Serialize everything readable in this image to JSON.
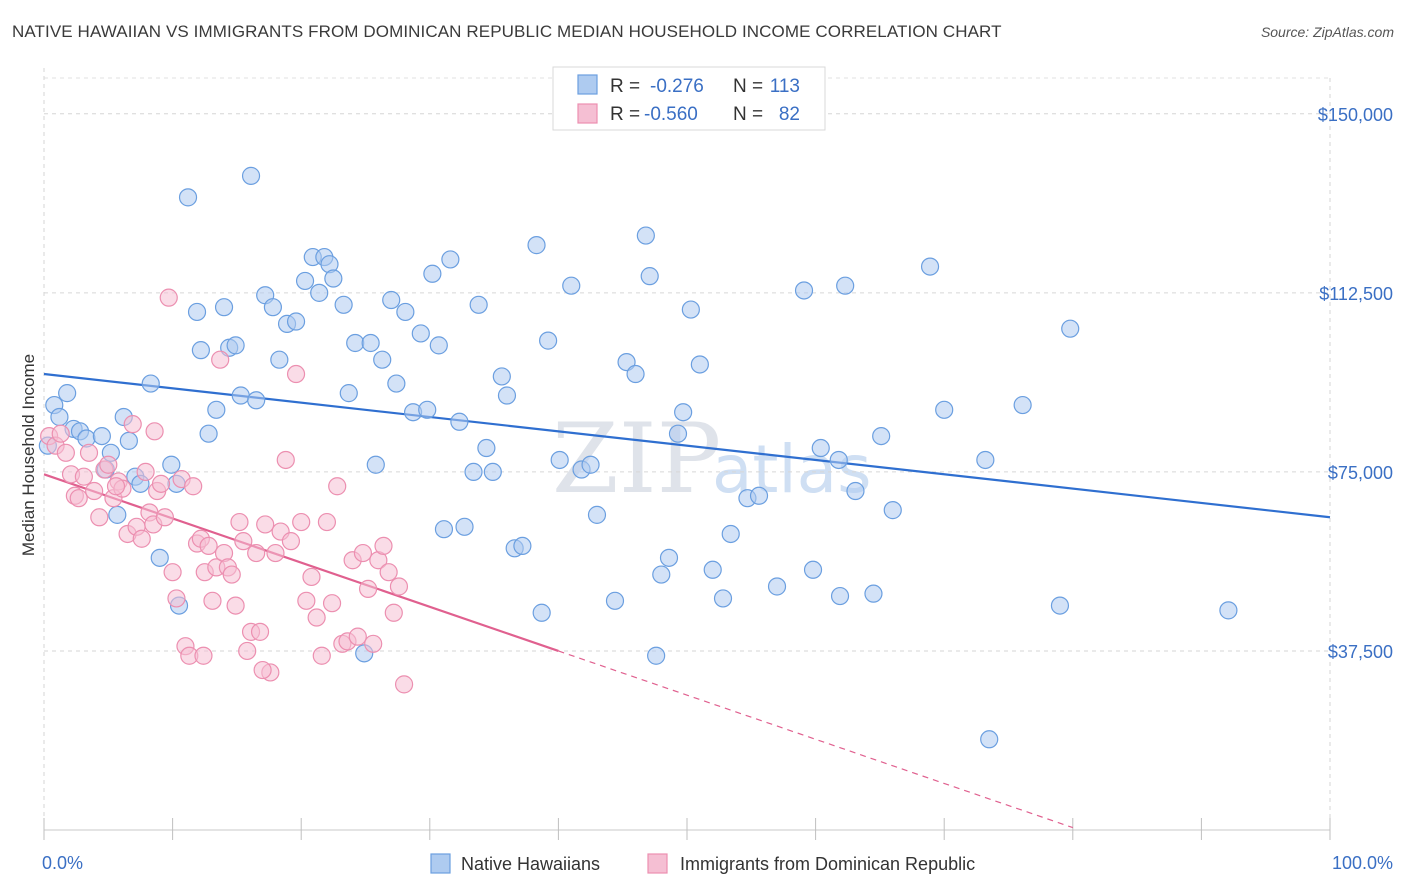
{
  "title": "NATIVE HAWAIIAN VS IMMIGRANTS FROM DOMINICAN REPUBLIC MEDIAN HOUSEHOLD INCOME CORRELATION CHART",
  "source": "Source: ZipAtlas.com",
  "watermark": {
    "part1": "ZIP",
    "part2": "atlas"
  },
  "chart_data": {
    "type": "scatter",
    "title": "NATIVE HAWAIIAN VS IMMIGRANTS FROM DOMINICAN REPUBLIC MEDIAN HOUSEHOLD INCOME CORRELATION CHART",
    "xlabel": "",
    "ylabel": "Median Household Income",
    "xlim": [
      0,
      100
    ],
    "ylim": [
      0,
      157500
    ],
    "x_tick_labels": [
      "0.0%",
      "100.0%"
    ],
    "y_ticks": [
      {
        "value": 37500,
        "label": "$37,500"
      },
      {
        "value": 75000,
        "label": "$75,000"
      },
      {
        "value": 112500,
        "label": "$112,500"
      },
      {
        "value": 150000,
        "label": "$150,000"
      }
    ],
    "grid": true,
    "legend": {
      "position": "top-center",
      "entries": [
        {
          "label_r": "R =",
          "r": "-0.276",
          "label_n": "N =",
          "n": "113"
        },
        {
          "label_r": "R =",
          "r": "-0.560",
          "label_n": "N =",
          "n": "82"
        }
      ]
    },
    "series": [
      {
        "name": "Native Hawaiians",
        "color": "#6b9fe0",
        "fill": "#aecbf0",
        "line_color": "#2f6fd0",
        "trend": {
          "x0": 0,
          "y0": 95500,
          "x1": 100,
          "y1": 65500,
          "dash_from": null
        },
        "points": [
          [
            0.3,
            80500
          ],
          [
            0.8,
            89000
          ],
          [
            1.2,
            86500
          ],
          [
            1.8,
            91500
          ],
          [
            2.3,
            84000
          ],
          [
            2.8,
            83500
          ],
          [
            3.3,
            82000
          ],
          [
            4.5,
            82500
          ],
          [
            4.8,
            75500
          ],
          [
            5.2,
            79000
          ],
          [
            5.7,
            66000
          ],
          [
            6.2,
            86500
          ],
          [
            6.6,
            81500
          ],
          [
            7.1,
            74000
          ],
          [
            7.5,
            72500
          ],
          [
            8.3,
            93500
          ],
          [
            9.0,
            57000
          ],
          [
            9.9,
            76500
          ],
          [
            10.3,
            72500
          ],
          [
            10.5,
            47000
          ],
          [
            11.2,
            132500
          ],
          [
            11.9,
            108500
          ],
          [
            12.2,
            100500
          ],
          [
            12.8,
            83000
          ],
          [
            13.4,
            88000
          ],
          [
            14.0,
            109500
          ],
          [
            14.4,
            101000
          ],
          [
            14.9,
            101500
          ],
          [
            15.3,
            91000
          ],
          [
            16.1,
            137000
          ],
          [
            16.5,
            90000
          ],
          [
            17.2,
            112000
          ],
          [
            17.8,
            109500
          ],
          [
            18.3,
            98500
          ],
          [
            18.9,
            106000
          ],
          [
            19.6,
            106500
          ],
          [
            20.3,
            115000
          ],
          [
            20.9,
            120000
          ],
          [
            21.4,
            112500
          ],
          [
            21.8,
            120000
          ],
          [
            22.2,
            118500
          ],
          [
            22.5,
            115500
          ],
          [
            23.3,
            110000
          ],
          [
            23.7,
            91500
          ],
          [
            24.2,
            102000
          ],
          [
            24.9,
            37000
          ],
          [
            25.4,
            102000
          ],
          [
            25.8,
            76500
          ],
          [
            26.3,
            98500
          ],
          [
            27.0,
            111000
          ],
          [
            27.4,
            93500
          ],
          [
            28.1,
            108500
          ],
          [
            28.7,
            87500
          ],
          [
            29.3,
            104000
          ],
          [
            29.8,
            88000
          ],
          [
            30.2,
            116500
          ],
          [
            30.7,
            101500
          ],
          [
            31.1,
            63000
          ],
          [
            31.6,
            119500
          ],
          [
            32.3,
            85500
          ],
          [
            32.7,
            63500
          ],
          [
            33.4,
            75000
          ],
          [
            33.8,
            110000
          ],
          [
            34.4,
            80000
          ],
          [
            34.9,
            75000
          ],
          [
            35.6,
            95000
          ],
          [
            36.0,
            91000
          ],
          [
            36.6,
            59000
          ],
          [
            37.2,
            59500
          ],
          [
            38.3,
            122500
          ],
          [
            38.7,
            45500
          ],
          [
            39.2,
            102500
          ],
          [
            40.1,
            77500
          ],
          [
            41.0,
            114000
          ],
          [
            41.8,
            75500
          ],
          [
            42.5,
            76500
          ],
          [
            43.0,
            66000
          ],
          [
            44.4,
            48000
          ],
          [
            45.3,
            98000
          ],
          [
            46.0,
            95500
          ],
          [
            46.8,
            124500
          ],
          [
            47.1,
            116000
          ],
          [
            47.6,
            36500
          ],
          [
            48.0,
            53500
          ],
          [
            48.6,
            57000
          ],
          [
            49.3,
            83000
          ],
          [
            49.7,
            87500
          ],
          [
            50.3,
            109000
          ],
          [
            51.0,
            97500
          ],
          [
            52.0,
            54500
          ],
          [
            52.8,
            48500
          ],
          [
            53.4,
            62000
          ],
          [
            54.7,
            69500
          ],
          [
            55.6,
            70000
          ],
          [
            57.0,
            51000
          ],
          [
            59.1,
            113000
          ],
          [
            59.8,
            54500
          ],
          [
            60.4,
            80000
          ],
          [
            61.8,
            77500
          ],
          [
            62.3,
            114000
          ],
          [
            63.1,
            71000
          ],
          [
            64.5,
            49500
          ],
          [
            65.1,
            82500
          ],
          [
            66.0,
            67000
          ],
          [
            68.9,
            118000
          ],
          [
            70.0,
            88000
          ],
          [
            73.2,
            77500
          ],
          [
            73.5,
            19000
          ],
          [
            76.1,
            89000
          ],
          [
            79.0,
            47000
          ],
          [
            79.8,
            105000
          ],
          [
            92.1,
            46000
          ],
          [
            61.9,
            49000
          ]
        ]
      },
      {
        "name": "Immigrants from Dominican Republic",
        "color": "#ec8fb0",
        "fill": "#f5bfd3",
        "line_color": "#e0608f",
        "trend": {
          "x0": 0,
          "y0": 74500,
          "x1": 40,
          "y1": 37500,
          "dash_from": 40,
          "x2": 80,
          "y2": 500
        },
        "points": [
          [
            0.4,
            82500
          ],
          [
            0.9,
            80500
          ],
          [
            1.3,
            83000
          ],
          [
            1.7,
            79000
          ],
          [
            2.1,
            74500
          ],
          [
            2.4,
            70000
          ],
          [
            2.7,
            69500
          ],
          [
            3.1,
            74000
          ],
          [
            3.5,
            79000
          ],
          [
            3.9,
            71000
          ],
          [
            4.3,
            65500
          ],
          [
            4.7,
            75500
          ],
          [
            5.0,
            76500
          ],
          [
            5.4,
            69500
          ],
          [
            5.8,
            73000
          ],
          [
            6.1,
            71500
          ],
          [
            6.5,
            62000
          ],
          [
            6.9,
            85000
          ],
          [
            7.2,
            63500
          ],
          [
            7.6,
            61000
          ],
          [
            7.9,
            75000
          ],
          [
            8.2,
            66500
          ],
          [
            8.5,
            64000
          ],
          [
            8.8,
            71000
          ],
          [
            9.1,
            72500
          ],
          [
            9.4,
            65500
          ],
          [
            9.7,
            111500
          ],
          [
            10.0,
            54000
          ],
          [
            10.3,
            48500
          ],
          [
            10.7,
            73500
          ],
          [
            11.0,
            38500
          ],
          [
            11.3,
            36500
          ],
          [
            11.6,
            72000
          ],
          [
            11.9,
            60000
          ],
          [
            12.2,
            61000
          ],
          [
            12.5,
            54000
          ],
          [
            12.8,
            59500
          ],
          [
            13.1,
            48000
          ],
          [
            13.4,
            55000
          ],
          [
            13.7,
            98500
          ],
          [
            14.0,
            58000
          ],
          [
            14.3,
            55000
          ],
          [
            14.6,
            53500
          ],
          [
            14.9,
            47000
          ],
          [
            15.2,
            64500
          ],
          [
            15.5,
            60500
          ],
          [
            15.8,
            37500
          ],
          [
            16.1,
            41500
          ],
          [
            16.5,
            58000
          ],
          [
            16.8,
            41500
          ],
          [
            17.2,
            64000
          ],
          [
            17.6,
            33000
          ],
          [
            18.0,
            58000
          ],
          [
            18.4,
            62500
          ],
          [
            18.8,
            77500
          ],
          [
            19.2,
            60500
          ],
          [
            19.6,
            95500
          ],
          [
            20.0,
            64500
          ],
          [
            20.4,
            48000
          ],
          [
            20.8,
            53000
          ],
          [
            21.2,
            44500
          ],
          [
            21.6,
            36500
          ],
          [
            22.0,
            64500
          ],
          [
            22.4,
            47500
          ],
          [
            22.8,
            72000
          ],
          [
            23.2,
            39000
          ],
          [
            23.6,
            39500
          ],
          [
            24.0,
            56500
          ],
          [
            24.4,
            40500
          ],
          [
            24.8,
            58000
          ],
          [
            25.2,
            50500
          ],
          [
            25.6,
            39000
          ],
          [
            26.0,
            56500
          ],
          [
            26.4,
            59500
          ],
          [
            26.8,
            54000
          ],
          [
            27.2,
            45500
          ],
          [
            27.6,
            51000
          ],
          [
            28.0,
            30500
          ],
          [
            17.0,
            33500
          ],
          [
            8.6,
            83500
          ],
          [
            5.6,
            72000
          ],
          [
            12.4,
            36500
          ]
        ]
      }
    ]
  },
  "bottom_legend": {
    "items": [
      {
        "label": "Native Hawaiians"
      },
      {
        "label": "Immigrants from Dominican Republic"
      }
    ]
  }
}
